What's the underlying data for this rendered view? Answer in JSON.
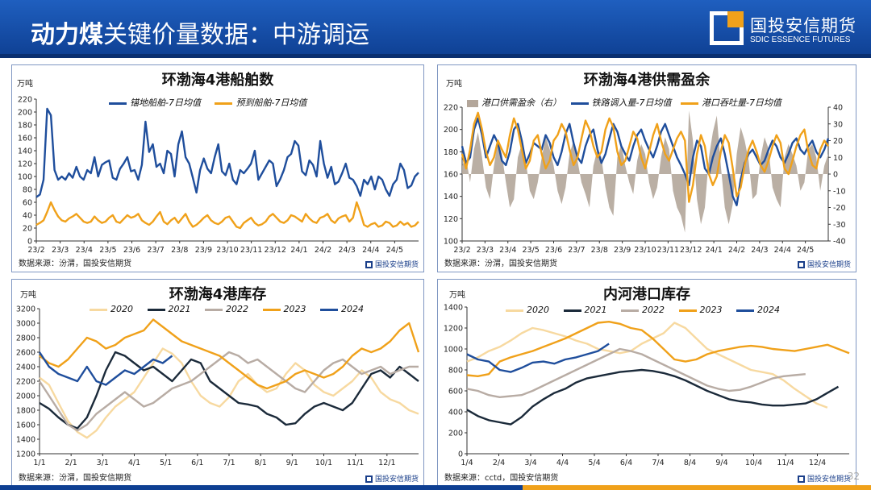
{
  "header": {
    "title_bold": "动力煤",
    "title_rest": "关键价量数据：中游调运",
    "logo_cn": "国投安信期货",
    "logo_en": "SDIC ESSENCE FUTURES"
  },
  "page_number": "32",
  "chart_data": [
    {
      "type": "line",
      "title": "环渤海4港船舶数",
      "unit": "万吨",
      "source": "数据来源：汾渭，国投安信期货",
      "logo": "国投安信期货",
      "ylim": [
        0,
        220
      ],
      "yticks": [
        0,
        20,
        40,
        60,
        80,
        100,
        120,
        140,
        160,
        180,
        200,
        220
      ],
      "xticks": [
        "23/2",
        "23/3",
        "23/4",
        "23/5",
        "23/6",
        "23/7",
        "23/8",
        "23/9",
        "23/10",
        "23/11",
        "23/12",
        "24/1",
        "24/2",
        "24/3",
        "24/4",
        "24/5"
      ],
      "series": [
        {
          "name": "锚地船舶-7日均值",
          "color": "#1f4e9c",
          "values": [
            68,
            72,
            95,
            205,
            195,
            110,
            95,
            100,
            95,
            105,
            98,
            115,
            100,
            95,
            110,
            105,
            130,
            100,
            118,
            122,
            125,
            98,
            95,
            112,
            120,
            130,
            108,
            110,
            95,
            118,
            185,
            138,
            150,
            115,
            120,
            105,
            140,
            135,
            100,
            150,
            170,
            130,
            120,
            98,
            75,
            110,
            128,
            112,
            105,
            130,
            150,
            108,
            102,
            120,
            95,
            88,
            110,
            105,
            112,
            120,
            140,
            95,
            105,
            115,
            125,
            120,
            85,
            96,
            110,
            130,
            135,
            155,
            148,
            108,
            102,
            125,
            118,
            100,
            155,
            120,
            98,
            115,
            88,
            92,
            105,
            120,
            98,
            95,
            85,
            70,
            95,
            88,
            100,
            80,
            100,
            95,
            80,
            70,
            88,
            95,
            120,
            110,
            82,
            86,
            100,
            106
          ]
        },
        {
          "name": "预到船舶-7日均值",
          "color": "#f0a11a",
          "values": [
            25,
            28,
            32,
            45,
            60,
            48,
            38,
            32,
            30,
            35,
            38,
            42,
            36,
            30,
            28,
            30,
            38,
            32,
            28,
            30,
            36,
            40,
            30,
            28,
            34,
            40,
            36,
            38,
            42,
            32,
            28,
            25,
            30,
            38,
            45,
            30,
            26,
            32,
            36,
            28,
            35,
            42,
            30,
            22,
            25,
            30,
            36,
            40,
            32,
            28,
            26,
            30,
            36,
            38,
            30,
            22,
            20,
            28,
            32,
            36,
            28,
            24,
            26,
            30,
            38,
            42,
            36,
            30,
            28,
            32,
            40,
            38,
            34,
            30,
            42,
            35,
            30,
            28,
            36,
            38,
            42,
            32,
            28,
            35,
            38,
            40,
            30,
            36,
            60,
            44,
            25,
            22,
            26,
            28,
            22,
            24,
            30,
            28,
            22,
            24,
            30,
            25,
            28,
            22,
            24,
            30
          ]
        }
      ]
    },
    {
      "type": "line",
      "title": "环渤海4港供需盈余",
      "unit": "万吨",
      "source": "数据来源：汾渭，国投安信期货",
      "logo": "国投安信期货",
      "ylim": [
        100,
        220
      ],
      "yticks": [
        100,
        120,
        140,
        160,
        180,
        200,
        220
      ],
      "ylim_right": [
        -40,
        40
      ],
      "yticks_right": [
        -40,
        -30,
        -20,
        -10,
        0,
        10,
        20,
        30,
        40
      ],
      "xticks": [
        "23/2",
        "23/3",
        "23/4",
        "23/5",
        "23/6",
        "23/7",
        "23/8",
        "23/9",
        "23/10",
        "23/11",
        "23/12",
        "24/1",
        "24/2",
        "24/3",
        "24/4",
        "24/5"
      ],
      "series": [
        {
          "name": "港口供需盈余（右）",
          "color": "#b3a69a",
          "axis": "right",
          "kind": "area",
          "values": [
            5,
            10,
            -5,
            15,
            25,
            10,
            -8,
            -15,
            5,
            20,
            12,
            -5,
            -20,
            -15,
            10,
            18,
            8,
            -10,
            -15,
            -5,
            10,
            22,
            15,
            5,
            -10,
            -18,
            -8,
            12,
            20,
            8,
            -5,
            -12,
            -20,
            5,
            15,
            10,
            -8,
            -20,
            -25,
            10,
            18,
            5,
            -5,
            -12,
            8,
            18,
            12,
            -5,
            -15,
            -8,
            10,
            22,
            15,
            -10,
            -20,
            -25,
            -35,
            38,
            20,
            -15,
            -30,
            -20,
            10,
            25,
            35,
            5,
            -20,
            -30,
            -18,
            12,
            28,
            20,
            8,
            -15,
            -12,
            10,
            22,
            15,
            -8,
            -15,
            -20,
            10,
            18,
            12,
            5,
            -10,
            -5,
            15,
            18,
            10,
            -10,
            5,
            12
          ]
        },
        {
          "name": "铁路调入量-7日均值",
          "color": "#1f4e9c",
          "axis": "left",
          "values": [
            185,
            170,
            175,
            200,
            210,
            195,
            175,
            185,
            195,
            188,
            172,
            168,
            180,
            200,
            205,
            190,
            170,
            178,
            188,
            185,
            182,
            195,
            188,
            175,
            168,
            180,
            196,
            205,
            188,
            175,
            170,
            185,
            195,
            200,
            182,
            170,
            178,
            192,
            205,
            198,
            185,
            178,
            172,
            185,
            195,
            200,
            190,
            182,
            175,
            185,
            198,
            205,
            195,
            185,
            175,
            168,
            160,
            150,
            175,
            190,
            185,
            165,
            160,
            175,
            185,
            192,
            178,
            160,
            140,
            132,
            155,
            170,
            178,
            182,
            175,
            168,
            172,
            182,
            190,
            185,
            175,
            170,
            178,
            188,
            192,
            182,
            178,
            185,
            190,
            180,
            175,
            182,
            192
          ]
        },
        {
          "name": "港口吞吐量-7日均值",
          "color": "#f0a11a",
          "axis": "left",
          "values": [
            178,
            165,
            182,
            205,
            215,
            200,
            180,
            168,
            175,
            190,
            182,
            175,
            195,
            210,
            200,
            182,
            165,
            172,
            190,
            195,
            178,
            165,
            172,
            190,
            195,
            205,
            198,
            182,
            168,
            175,
            192,
            208,
            200,
            185,
            175,
            180,
            200,
            210,
            202,
            180,
            168,
            172,
            185,
            198,
            192,
            175,
            165,
            180,
            195,
            205,
            190,
            178,
            172,
            182,
            192,
            198,
            190,
            135,
            150,
            178,
            195,
            185,
            160,
            150,
            158,
            180,
            195,
            188,
            165,
            140,
            148,
            168,
            182,
            190,
            180,
            168,
            162,
            172,
            185,
            195,
            188,
            165,
            160,
            172,
            185,
            195,
            200,
            180,
            168,
            165,
            182,
            190,
            185
          ]
        }
      ]
    },
    {
      "type": "line",
      "title": "环渤海4港库存",
      "unit": "万吨",
      "source": "数据来源：汾渭，国投安信期货",
      "logo": "国投安信期货",
      "ylim": [
        1200,
        3200
      ],
      "yticks": [
        1200,
        1400,
        1600,
        1800,
        2000,
        2200,
        2400,
        2600,
        2800,
        3000,
        3200
      ],
      "xticks": [
        "1/1",
        "2/1",
        "3/1",
        "4/1",
        "5/1",
        "6/1",
        "7/1",
        "8/1",
        "9/1",
        "10/1",
        "11/1",
        "12/1"
      ],
      "series": [
        {
          "name": "2020",
          "color": "#f7d9a0",
          "values": [
            2250,
            2150,
            1900,
            1650,
            1500,
            1420,
            1520,
            1700,
            1850,
            1950,
            2050,
            2250,
            2450,
            2650,
            2580,
            2450,
            2200,
            2000,
            1900,
            1850,
            1980,
            2200,
            2300,
            2150,
            2050,
            2100,
            2300,
            2450,
            2350,
            2150,
            2050,
            2000,
            2100,
            2200,
            2350,
            2250,
            2050,
            1950,
            1900,
            1800,
            1750
          ]
        },
        {
          "name": "2021",
          "color": "#1b2a3a",
          "values": [
            1900,
            1820,
            1700,
            1600,
            1550,
            1700,
            2000,
            2350,
            2600,
            2550,
            2450,
            2350,
            2400,
            2300,
            2200,
            2350,
            2500,
            2450,
            2200,
            2100,
            2000,
            1900,
            1880,
            1850,
            1750,
            1700,
            1600,
            1620,
            1750,
            1850,
            1900,
            1850,
            1800,
            1900,
            2100,
            2300,
            2350,
            2250,
            2400,
            2300,
            2200
          ]
        },
        {
          "name": "2022",
          "color": "#b8aca4",
          "values": [
            2200,
            2000,
            1800,
            1600,
            1520,
            1600,
            1750,
            1850,
            1950,
            2050,
            1950,
            1850,
            1900,
            2000,
            2100,
            2150,
            2200,
            2300,
            2400,
            2500,
            2600,
            2550,
            2450,
            2500,
            2400,
            2300,
            2200,
            2100,
            2050,
            2200,
            2350,
            2450,
            2500,
            2400,
            2300,
            2350,
            2400,
            2300,
            2350,
            2400,
            2400
          ]
        },
        {
          "name": "2023",
          "color": "#f0a11a",
          "values": [
            2550,
            2450,
            2400,
            2500,
            2650,
            2800,
            2750,
            2650,
            2700,
            2800,
            2850,
            2900,
            3050,
            2950,
            2850,
            2750,
            2700,
            2650,
            2600,
            2550,
            2450,
            2350,
            2250,
            2150,
            2100,
            2150,
            2200,
            2300,
            2350,
            2300,
            2250,
            2300,
            2400,
            2550,
            2650,
            2600,
            2650,
            2750,
            2900,
            3000,
            2600
          ]
        },
        {
          "name": "2024",
          "color": "#1f4e9c",
          "values": [
            2600,
            2400,
            2300,
            2250,
            2200,
            2400,
            2200,
            2150,
            2250,
            2350,
            2300,
            2400,
            2500,
            2450,
            2550
          ]
        }
      ]
    },
    {
      "type": "line",
      "title": "内河港口库存",
      "unit": "万吨",
      "source": "数据来源：cctd，国投安信期货",
      "logo": "国投安信期货",
      "ylim": [
        0,
        1400
      ],
      "yticks": [
        0,
        200,
        400,
        600,
        800,
        1000,
        1200,
        1400
      ],
      "xticks": [
        "1/4",
        "2/4",
        "3/4",
        "4/4",
        "5/4",
        "6/4",
        "7/4",
        "8/4",
        "9/4",
        "10/4",
        "11/4",
        "12/4"
      ],
      "series": [
        {
          "name": "2020",
          "color": "#f7d9a0",
          "values": [
            880,
            920,
            980,
            1020,
            1080,
            1150,
            1200,
            1180,
            1150,
            1120,
            1080,
            1050,
            1000,
            980,
            960,
            980,
            1050,
            1100,
            1150,
            1250,
            1200,
            1100,
            1000,
            950,
            900,
            850,
            800,
            780,
            760,
            700,
            620,
            550,
            480,
            440
          ]
        },
        {
          "name": "2021",
          "color": "#1b2a3a",
          "values": [
            420,
            360,
            320,
            300,
            280,
            350,
            450,
            520,
            580,
            620,
            680,
            720,
            740,
            760,
            780,
            790,
            800,
            790,
            770,
            740,
            700,
            650,
            600,
            560,
            520,
            500,
            490,
            470,
            460,
            460,
            470,
            480,
            520,
            580,
            640
          ]
        },
        {
          "name": "2022",
          "color": "#b8aca4",
          "values": [
            620,
            600,
            560,
            540,
            550,
            560,
            600,
            650,
            700,
            750,
            800,
            850,
            900,
            950,
            1000,
            980,
            950,
            900,
            850,
            800,
            750,
            700,
            650,
            620,
            600,
            610,
            640,
            680,
            720,
            740,
            750,
            760
          ]
        },
        {
          "name": "2023",
          "color": "#f0a11a",
          "values": [
            750,
            740,
            760,
            880,
            920,
            950,
            980,
            1020,
            1060,
            1100,
            1150,
            1200,
            1250,
            1260,
            1240,
            1200,
            1180,
            1100,
            1000,
            900,
            880,
            900,
            950,
            980,
            1000,
            1020,
            1030,
            1020,
            1000,
            990,
            980,
            1000,
            1020,
            1040,
            1000,
            960
          ]
        },
        {
          "name": "2024",
          "color": "#1f4e9c",
          "values": [
            950,
            900,
            880,
            800,
            780,
            820,
            870,
            880,
            860,
            900,
            920,
            950,
            980,
            1050
          ]
        }
      ]
    }
  ]
}
